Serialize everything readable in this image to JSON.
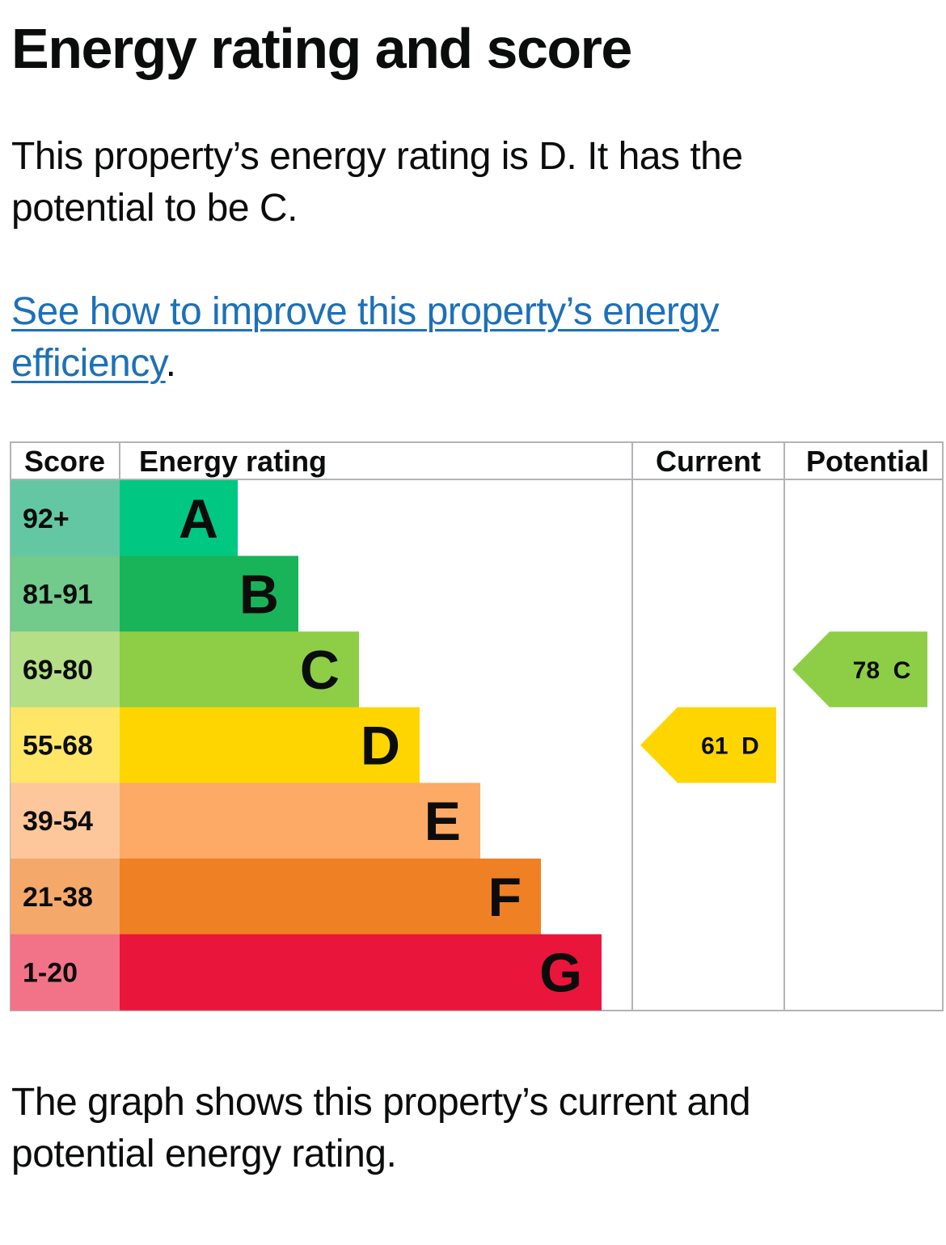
{
  "title": "Energy rating and score",
  "summary": "This property’s energy rating is D. It has the potential to be C.",
  "improve": {
    "link_text": "See how to improve this property’s energy efficiency",
    "suffix": "."
  },
  "caption": "The graph shows this property’s current and potential energy rating.",
  "table_headers": {
    "score": "Score",
    "rating": "Energy rating",
    "current": "Current",
    "potential": "Potential"
  },
  "chart_data": {
    "type": "bar",
    "bands": [
      {
        "score": "92+",
        "letter": "A",
        "color": "#00c781",
        "score_bg": "#64c7a4"
      },
      {
        "score": "81-91",
        "letter": "B",
        "color": "#19b459",
        "score_bg": "#72ca8b"
      },
      {
        "score": "69-80",
        "letter": "C",
        "color": "#8dce46",
        "score_bg": "#b4df86"
      },
      {
        "score": "55-68",
        "letter": "D",
        "color": "#ffd500",
        "score_bg": "#ffe666"
      },
      {
        "score": "39-54",
        "letter": "E",
        "color": "#fcaa65",
        "score_bg": "#fdc79b"
      },
      {
        "score": "21-38",
        "letter": "F",
        "color": "#ef8023",
        "score_bg": "#f4a86a"
      },
      {
        "score": "1-20",
        "letter": "G",
        "color": "#e9153b",
        "score_bg": "#f27387"
      }
    ],
    "current": {
      "score": 61,
      "band": "D",
      "label": "61  D",
      "color": "#ffd500"
    },
    "potential": {
      "score": 78,
      "band": "C",
      "label": "78  C",
      "color": "#8dce46"
    }
  }
}
